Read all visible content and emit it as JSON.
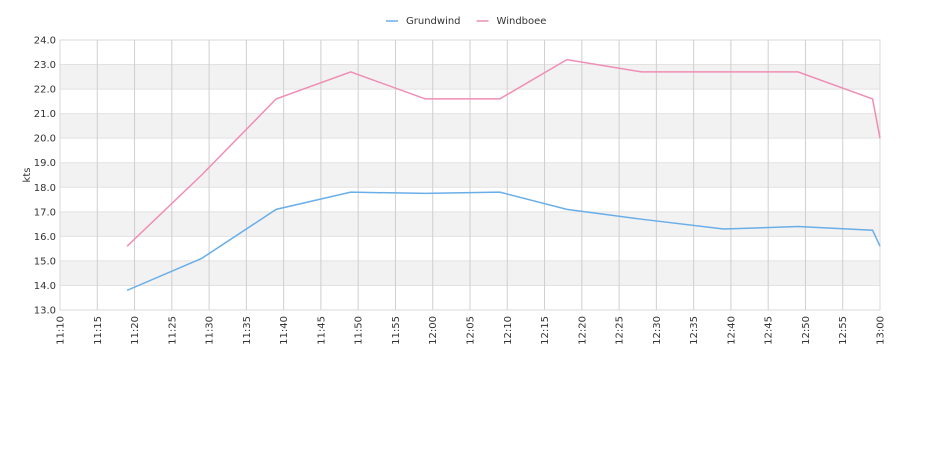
{
  "chart_data": {
    "type": "line",
    "y_label": "kts",
    "x": [
      "11:19",
      "11:29",
      "11:39",
      "11:49",
      "11:59",
      "12:09",
      "12:18",
      "12:28",
      "12:39",
      "12:49",
      "12:59",
      "13:00"
    ],
    "series": [
      {
        "name": "Grundwind",
        "color": "#6aaee8",
        "values": [
          13.8,
          15.1,
          17.1,
          17.8,
          17.75,
          17.8,
          17.1,
          16.7,
          16.3,
          16.4,
          16.25,
          15.6
        ]
      },
      {
        "name": "Windboee",
        "color": "#ef8db5",
        "values": [
          15.6,
          18.5,
          21.6,
          22.7,
          21.6,
          21.6,
          23.2,
          22.7,
          22.7,
          22.7,
          21.6,
          20.0
        ]
      }
    ],
    "xlim": [
      "11:10",
      "13:00"
    ],
    "xticks": [
      "11:10",
      "11:15",
      "11:20",
      "11:25",
      "11:30",
      "11:35",
      "11:40",
      "11:45",
      "11:50",
      "11:55",
      "12:00",
      "12:05",
      "12:10",
      "12:15",
      "12:20",
      "12:25",
      "12:30",
      "12:35",
      "12:40",
      "12:45",
      "12:50",
      "12:55",
      "13:00"
    ],
    "ylim": [
      13,
      24
    ],
    "yticks": [
      {
        "value": 13,
        "label": "13.0"
      },
      {
        "value": 14,
        "label": "14.0"
      },
      {
        "value": 15,
        "label": "15.0"
      },
      {
        "value": 16,
        "label": "16.0"
      },
      {
        "value": 17,
        "label": "17.0"
      },
      {
        "value": 18,
        "label": "18.0"
      },
      {
        "value": 19,
        "label": "19.0"
      },
      {
        "value": 20,
        "label": "20.0"
      },
      {
        "value": 21,
        "label": "21.0"
      },
      {
        "value": 22,
        "label": "22.0"
      },
      {
        "value": 23,
        "label": "23.0"
      },
      {
        "value": 24,
        "label": "24.0"
      }
    ],
    "grid": true,
    "bands": true,
    "legend": "top"
  }
}
